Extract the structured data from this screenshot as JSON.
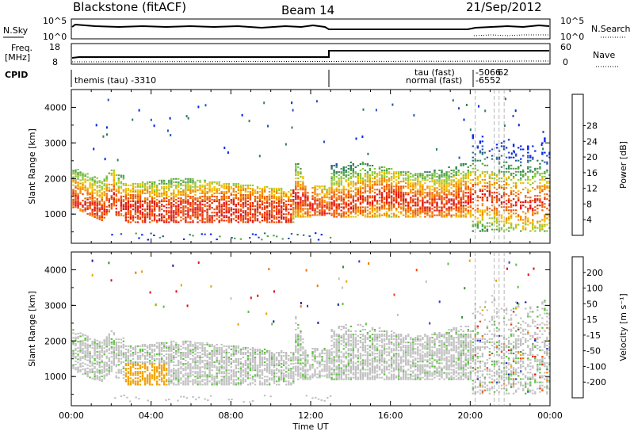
{
  "header": {
    "title": "Blackstone (fitACF)",
    "beam": "Beam 14",
    "date": "21/Sep/2012"
  },
  "top_panels": {
    "nsky_label": "N.Sky",
    "nsky_ticks": [
      "10^5",
      "10^0"
    ],
    "nsearch_label": "N.Search",
    "freq_label": "Freq.",
    "freq_unit": "[MHz]",
    "freq_ticks": [
      "18",
      "8"
    ],
    "nave_ticks": [
      "60",
      "0"
    ],
    "nave_label": "Nave",
    "cpid_label": "CPID",
    "cpid_main": "themis (tau) -3310",
    "cpid_tau": "tau (fast)",
    "cpid_normal": "normal (fast)",
    "cpid_tau_nums": "-5066",
    "cpid_tau_nums2": "62",
    "cpid_normal_nums": "-6552"
  },
  "chart_data": [
    {
      "type": "heatmap",
      "title": "",
      "xlabel": "",
      "ylabel": "Slant Range [km]",
      "xlim": [
        "00:00",
        "00:00"
      ],
      "ylim": [
        180,
        4500
      ],
      "yticks": [
        "1000",
        "2000",
        "3000",
        "4000"
      ],
      "colorbar": {
        "label": "Power [dB]",
        "ticks": [
          "4",
          "8",
          "12",
          "16",
          "20",
          "24",
          "28"
        ],
        "colors": [
          "#0022ee",
          "#2a50b8",
          "#2e7d5a",
          "#4fa24a",
          "#8cc63f",
          "#f0c000",
          "#f08a00",
          "#f05000",
          "#e01010"
        ]
      }
    },
    {
      "type": "heatmap",
      "title": "",
      "xlabel": "Time UT",
      "ylabel": "Slant Range [km]",
      "xlim": [
        "00:00",
        "00:00"
      ],
      "ylim": [
        180,
        4500
      ],
      "xticks": [
        "00:00",
        "04:00",
        "08:00",
        "12:00",
        "16:00",
        "20:00",
        "00:00"
      ],
      "yticks": [
        "1000",
        "2000",
        "3000",
        "4000"
      ],
      "colorbar": {
        "label": "Velocity [m s⁻¹]",
        "ticks": [
          "200",
          "100",
          "50",
          "15",
          "-15",
          "-50",
          "-100",
          "-200"
        ],
        "colors": [
          "#1a20a0",
          "#3040c0",
          "#3a8a3a",
          "#5cc040",
          "#c0c0c0",
          "#f0a000",
          "#f07000",
          "#f04000",
          "#e01010"
        ]
      }
    }
  ]
}
